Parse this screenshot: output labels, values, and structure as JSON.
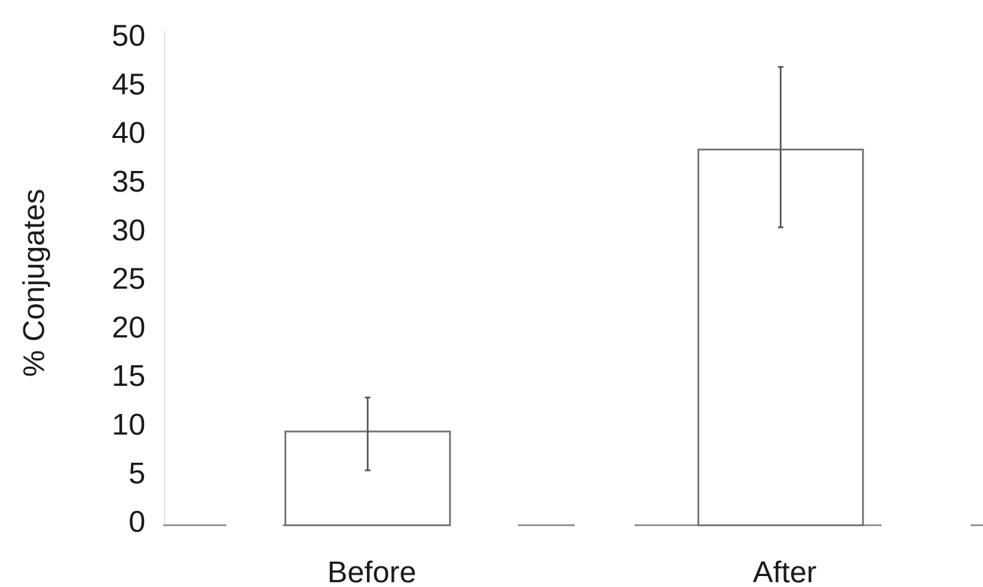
{
  "chart_data": {
    "type": "bar",
    "title": "",
    "xlabel": "",
    "ylabel": "% Conjugates",
    "ylim": [
      0,
      50
    ],
    "yticks": [
      "0",
      "5",
      "10",
      "15",
      "20",
      "25",
      "30",
      "35",
      "40",
      "45",
      "50"
    ],
    "categories": [
      "Before",
      "After"
    ],
    "values": [
      9.5,
      38.5
    ],
    "error_low": [
      5.5,
      30.5
    ],
    "error_high": [
      13,
      47
    ],
    "grid": false,
    "legend": "none"
  },
  "colors": {
    "bar_fill": "#ffffff",
    "bar_stroke": "#6e6e6e",
    "text": "#1a1a1a"
  }
}
